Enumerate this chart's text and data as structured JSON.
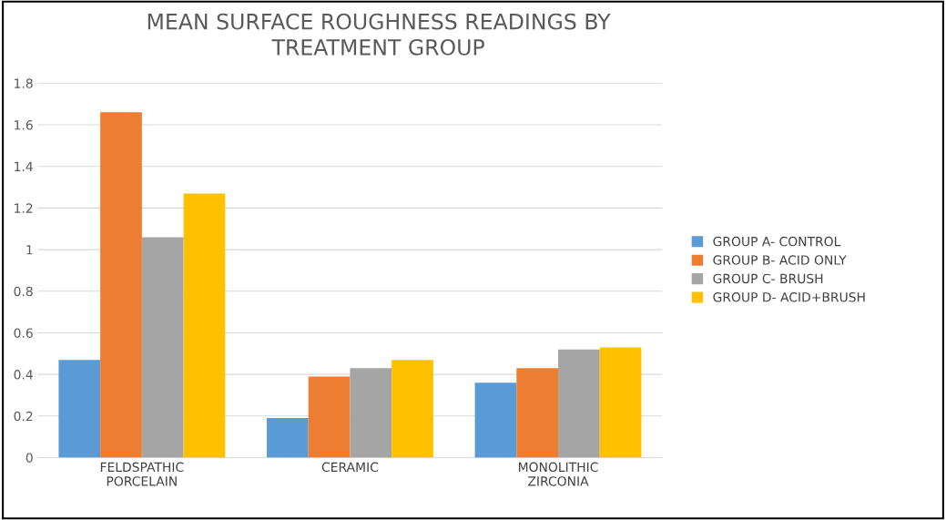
{
  "chart_data": {
    "type": "bar",
    "title": "MEAN SURFACE ROUGHNESS READINGS BY\nTREATMENT GROUP",
    "categories": [
      "FELDSPATHIC\nPORCELAIN",
      "CERAMIC",
      "MONOLITHIC\nZIRCONIA"
    ],
    "series": [
      {
        "name": "GROUP A- CONTROL",
        "color": "#5b9bd5",
        "values": [
          0.47,
          0.19,
          0.36
        ]
      },
      {
        "name": "GROUP B- ACID ONLY",
        "color": "#ed7d31",
        "values": [
          1.66,
          0.39,
          0.43
        ]
      },
      {
        "name": "GROUP C- BRUSH",
        "color": "#a5a5a5",
        "values": [
          1.06,
          0.43,
          0.52
        ]
      },
      {
        "name": "GROUP D- ACID+BRUSH",
        "color": "#ffc000",
        "values": [
          1.27,
          0.47,
          0.53
        ]
      }
    ],
    "ylim": [
      0,
      1.8
    ],
    "yticks": [
      0,
      0.2,
      0.4,
      0.6,
      0.8,
      1,
      1.2,
      1.4,
      1.6,
      1.8
    ],
    "grid": "y",
    "legend": "right"
  }
}
